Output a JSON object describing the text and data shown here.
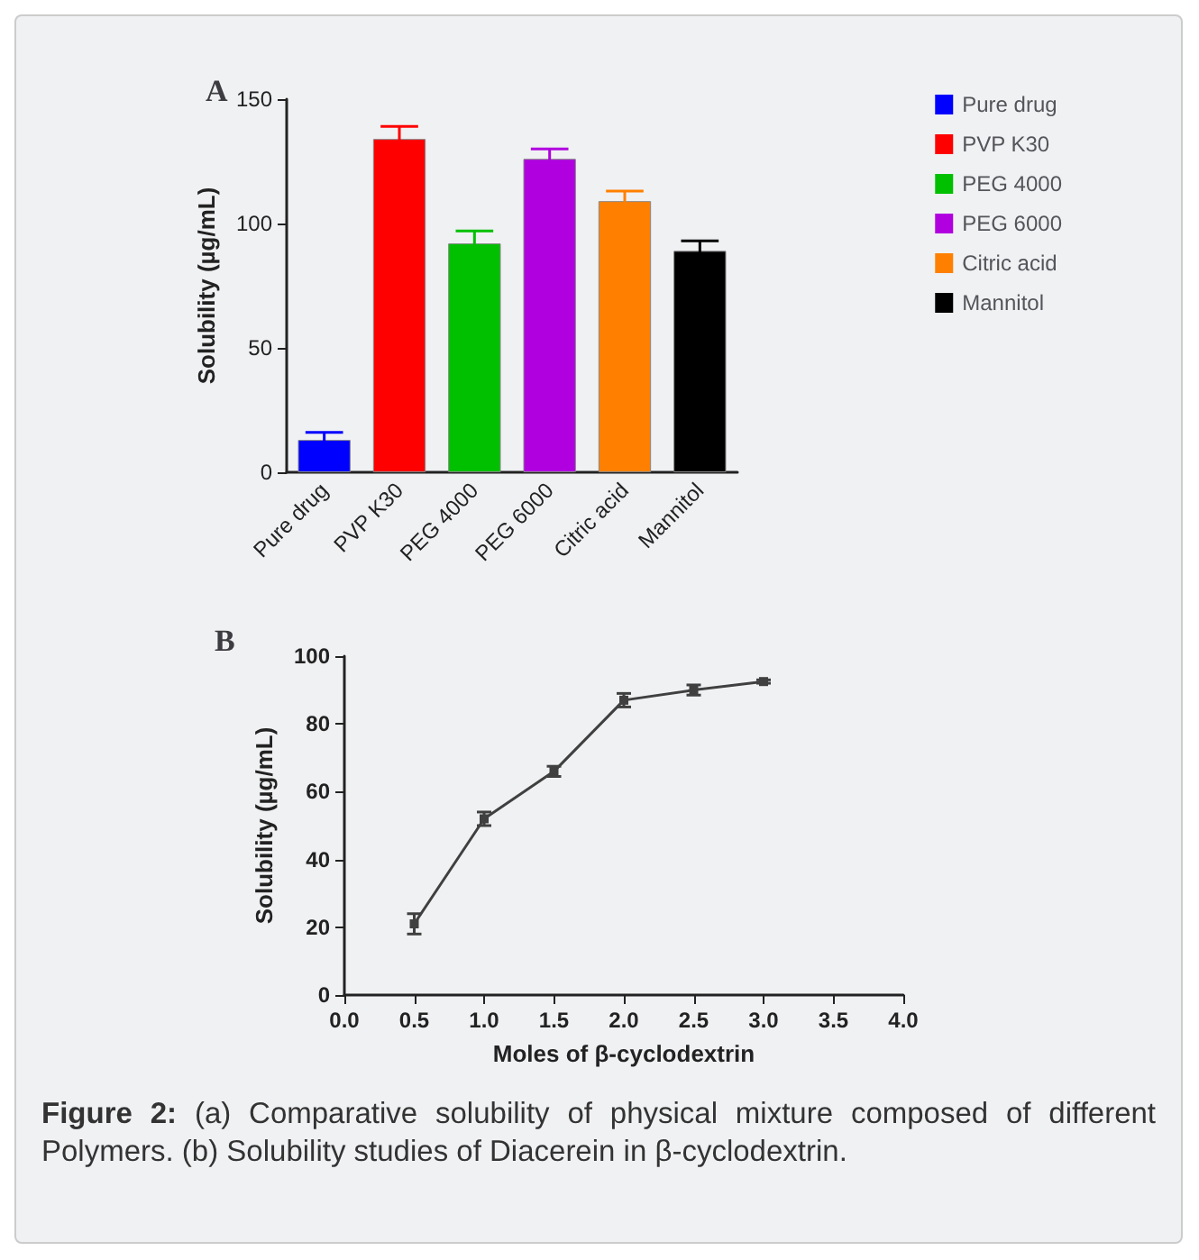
{
  "chart_data": [
    {
      "type": "bar",
      "title": "A",
      "ylabel": "Solubility (µg/mL)",
      "categories": [
        "Pure drug",
        "PVP K30",
        "PEG 4000",
        "PEG 6000",
        "Citric acid",
        "Mannitol"
      ],
      "series": [
        {
          "name": "Pure drug",
          "color": "#0000ff",
          "values": [
            13,
            null,
            null,
            null,
            null,
            null
          ],
          "errors": [
            3,
            null,
            null,
            null,
            null,
            null
          ]
        },
        {
          "name": "PVP K30",
          "color": "#ff0000",
          "values": [
            null,
            134,
            null,
            null,
            null,
            null
          ],
          "errors": [
            null,
            5,
            null,
            null,
            null,
            null
          ]
        },
        {
          "name": "PEG 4000",
          "color": "#00c000",
          "values": [
            null,
            null,
            92,
            null,
            null,
            null
          ],
          "errors": [
            null,
            null,
            5,
            null,
            null,
            null
          ]
        },
        {
          "name": "PEG 6000",
          "color": "#b000e0",
          "values": [
            null,
            null,
            null,
            126,
            null,
            null
          ],
          "errors": [
            null,
            null,
            null,
            4,
            null,
            null
          ]
        },
        {
          "name": "Citric acid",
          "color": "#ff8000",
          "values": [
            null,
            null,
            null,
            null,
            109,
            null
          ],
          "errors": [
            null,
            null,
            null,
            null,
            4,
            null
          ]
        },
        {
          "name": "Mannitol",
          "color": "#000000",
          "values": [
            null,
            null,
            null,
            null,
            null,
            89
          ],
          "errors": [
            null,
            null,
            null,
            null,
            null,
            4
          ]
        }
      ],
      "stacked": true,
      "ylim": [
        0,
        150
      ],
      "yticks": [
        0,
        50,
        100,
        150
      ],
      "legend": "right",
      "grid": false
    },
    {
      "type": "line",
      "title": "B",
      "xlabel": "Moles of β-cyclodextrin",
      "ylabel": "Solubility (µg/mL)",
      "x": [
        0.5,
        1.0,
        1.5,
        2.0,
        2.5,
        3.0
      ],
      "series": [
        {
          "color": "#404040",
          "values": [
            21,
            52,
            66,
            87,
            90,
            92.5
          ],
          "errors": [
            3,
            2,
            1.5,
            2,
            1.5,
            0.5
          ]
        }
      ],
      "xlim": [
        0,
        4
      ],
      "xticks": [
        {
          "value": 0,
          "label": "0.0"
        },
        {
          "value": 0.5,
          "label": "0.5"
        },
        {
          "value": 1,
          "label": "1.0"
        },
        {
          "value": 1.5,
          "label": "1.5"
        },
        {
          "value": 2,
          "label": "2.0"
        },
        {
          "value": 2.5,
          "label": "2.5"
        },
        {
          "value": 3,
          "label": "3.0"
        },
        {
          "value": 3.5,
          "label": "3.5"
        },
        {
          "value": 4,
          "label": "4.0"
        }
      ],
      "ylim": [
        0,
        100
      ],
      "yticks": [
        0,
        20,
        40,
        60,
        80,
        100
      ],
      "marker": "square",
      "line_style": "solid",
      "grid": false,
      "annotations": [
        "Figure 2:",
        "(a) Comparative solubility of physical mixture composed of different Polymers. (b) Solubility studies of Diacerein in β-cyclodextrin."
      ]
    }
  ]
}
